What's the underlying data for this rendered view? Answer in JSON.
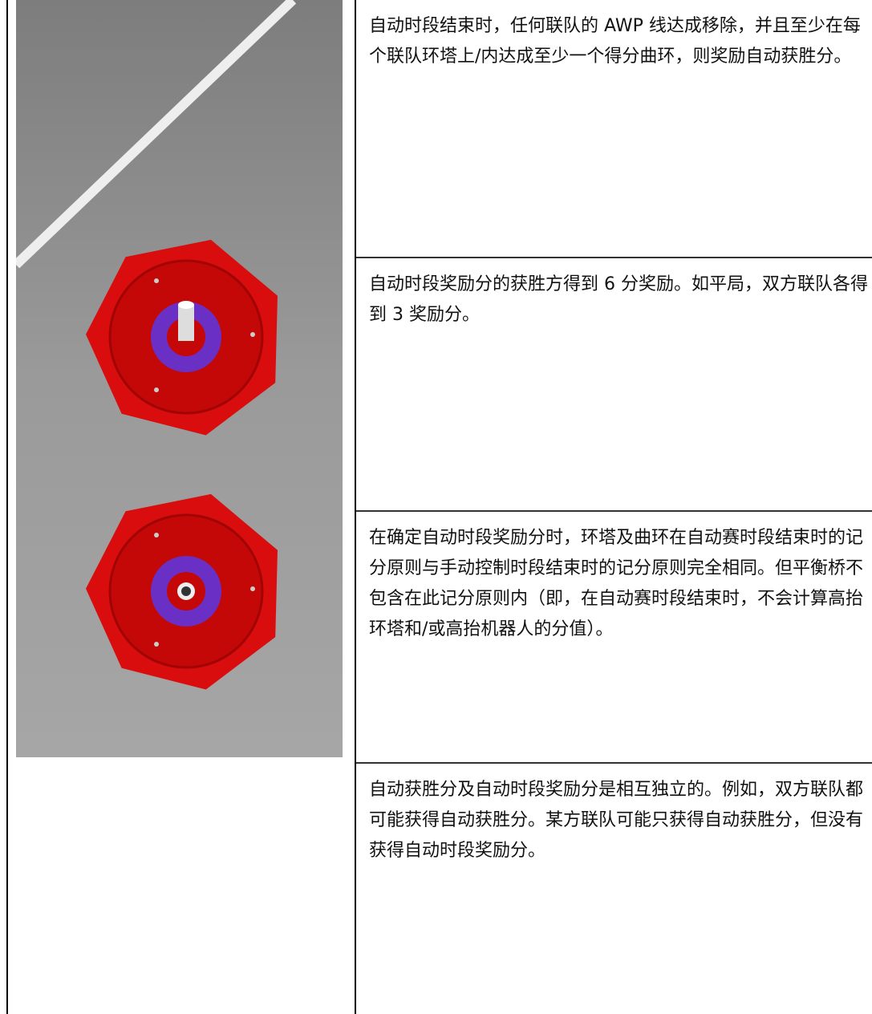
{
  "table": {
    "rows": [
      "自动时段结束时，任何联队的 AWP 线达成移除，并且至少在每个联队环塔上/内达成至少一个得分曲环，则奖励自动获胜分。",
      "自动时段奖励分的获胜方得到 6 分奖励。如平局，双方联队各得到 3 奖励分。",
      "在确定自动时段奖励分时，环塔及曲环在自动赛时段结束时的记分原则与手动控制时段结束时的记分原则完全相同。但平衡桥不包含在此记分原则内（即，在自动赛时段结束时，不会计算高抬环塔和/或高抬机器人的分值）。",
      "自动获胜分及自动时段奖励分是相互独立的。例如，双方联队都可能获得自动获胜分。某方联队可能只获得自动获胜分，但没有获得自动时段奖励分。"
    ]
  }
}
